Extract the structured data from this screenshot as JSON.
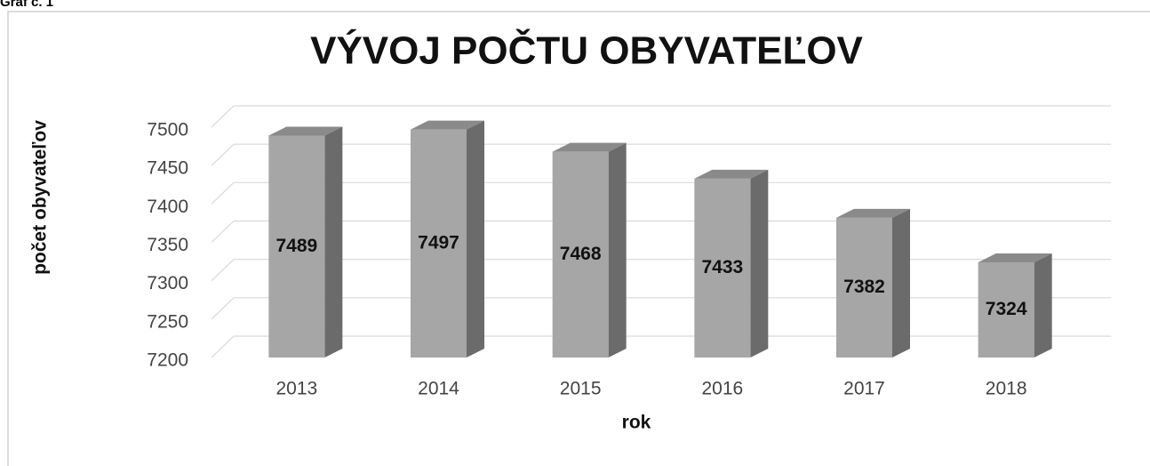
{
  "chart_data": {
    "type": "bar3d",
    "caption": "Graf č. 1",
    "title": "VÝVOJ POČTU OBYVATEĽOV",
    "x_label": "rok",
    "y_label": "počet obyvateľov",
    "categories": [
      "2013",
      "2014",
      "2015",
      "2016",
      "2017",
      "2018"
    ],
    "values": [
      7489,
      7497,
      7468,
      7433,
      7382,
      7324
    ],
    "color": "#a6a6a6",
    "ylim": [
      7200,
      7500
    ],
    "yticks": [
      7200,
      7250,
      7300,
      7350,
      7400,
      7450,
      7500
    ],
    "grid": true
  }
}
